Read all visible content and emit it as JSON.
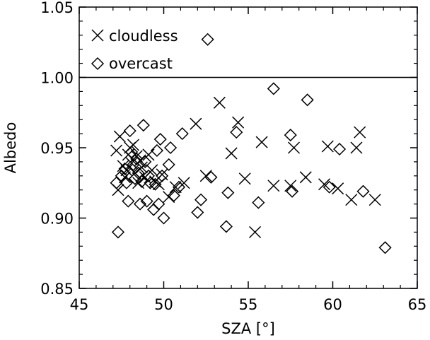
{
  "chart_data": {
    "type": "scatter",
    "xlabel": "SZA [°]",
    "ylabel": "Albedo",
    "xlim": [
      45,
      65
    ],
    "ylim": [
      0.85,
      1.05
    ],
    "x_ticks": [
      "45",
      "50",
      "55",
      "60",
      "65"
    ],
    "y_ticks": [
      "0.85",
      "0.90",
      "0.95",
      "1.00",
      "1.05"
    ],
    "x_tick_values": [
      45,
      50,
      55,
      60,
      65
    ],
    "y_tick_values": [
      0.85,
      0.9,
      0.95,
      1.0,
      1.05
    ],
    "reference_line_y": 1.0,
    "grid": false,
    "legend_position": "top-left",
    "series": [
      {
        "name": "cloudless",
        "marker": "x",
        "points": [
          [
            47.2,
            0.948
          ],
          [
            47.3,
            0.92
          ],
          [
            47.4,
            0.958
          ],
          [
            47.6,
            0.937
          ],
          [
            47.7,
            0.929
          ],
          [
            47.8,
            0.934
          ],
          [
            47.9,
            0.945
          ],
          [
            48.0,
            0.95
          ],
          [
            48.1,
            0.939
          ],
          [
            48.2,
            0.952
          ],
          [
            48.3,
            0.932
          ],
          [
            48.4,
            0.944
          ],
          [
            48.5,
            0.925
          ],
          [
            48.6,
            0.941
          ],
          [
            48.7,
            0.936
          ],
          [
            48.9,
            0.929
          ],
          [
            49.1,
            0.945
          ],
          [
            49.3,
            0.934
          ],
          [
            49.5,
            0.926
          ],
          [
            49.7,
            0.924
          ],
          [
            49.9,
            0.931
          ],
          [
            50.3,
            0.915
          ],
          [
            50.7,
            0.922
          ],
          [
            51.2,
            0.925
          ],
          [
            51.9,
            0.967
          ],
          [
            52.5,
            0.93
          ],
          [
            53.3,
            0.982
          ],
          [
            54.0,
            0.946
          ],
          [
            54.4,
            0.968
          ],
          [
            54.8,
            0.928
          ],
          [
            55.4,
            0.89
          ],
          [
            55.8,
            0.954
          ],
          [
            56.5,
            0.923
          ],
          [
            57.5,
            0.923
          ],
          [
            57.7,
            0.95
          ],
          [
            58.4,
            0.929
          ],
          [
            59.5,
            0.924
          ],
          [
            59.7,
            0.951
          ],
          [
            60.3,
            0.921
          ],
          [
            61.1,
            0.913
          ],
          [
            61.4,
            0.95
          ],
          [
            61.6,
            0.961
          ],
          [
            62.5,
            0.913
          ]
        ]
      },
      {
        "name": "overcast",
        "marker": "diamond",
        "points": [
          [
            47.2,
            0.925
          ],
          [
            47.3,
            0.89
          ],
          [
            47.5,
            0.93
          ],
          [
            47.7,
            0.935
          ],
          [
            47.8,
            0.925
          ],
          [
            47.9,
            0.912
          ],
          [
            48.0,
            0.962
          ],
          [
            48.1,
            0.947
          ],
          [
            48.2,
            0.938
          ],
          [
            48.3,
            0.928
          ],
          [
            48.4,
            0.942
          ],
          [
            48.5,
            0.932
          ],
          [
            48.6,
            0.91
          ],
          [
            48.7,
            0.926
          ],
          [
            48.8,
            0.966
          ],
          [
            48.9,
            0.94
          ],
          [
            49.0,
            0.912
          ],
          [
            49.1,
            0.93
          ],
          [
            49.2,
            0.925
          ],
          [
            49.4,
            0.906
          ],
          [
            49.5,
            0.924
          ],
          [
            49.6,
            0.948
          ],
          [
            49.7,
            0.91
          ],
          [
            49.8,
            0.956
          ],
          [
            49.9,
            0.93
          ],
          [
            50.0,
            0.9
          ],
          [
            50.3,
            0.938
          ],
          [
            50.4,
            0.95
          ],
          [
            50.6,
            0.916
          ],
          [
            50.9,
            0.922
          ],
          [
            51.1,
            0.96
          ],
          [
            52.0,
            0.904
          ],
          [
            52.2,
            0.913
          ],
          [
            52.6,
            1.027
          ],
          [
            52.8,
            0.929
          ],
          [
            53.7,
            0.894
          ],
          [
            53.8,
            0.918
          ],
          [
            54.3,
            0.961
          ],
          [
            55.6,
            0.911
          ],
          [
            56.5,
            0.992
          ],
          [
            57.5,
            0.959
          ],
          [
            57.6,
            0.919
          ],
          [
            58.5,
            0.984
          ],
          [
            59.8,
            0.922
          ],
          [
            60.4,
            0.949
          ],
          [
            61.8,
            0.919
          ],
          [
            63.1,
            0.879
          ]
        ]
      }
    ]
  }
}
